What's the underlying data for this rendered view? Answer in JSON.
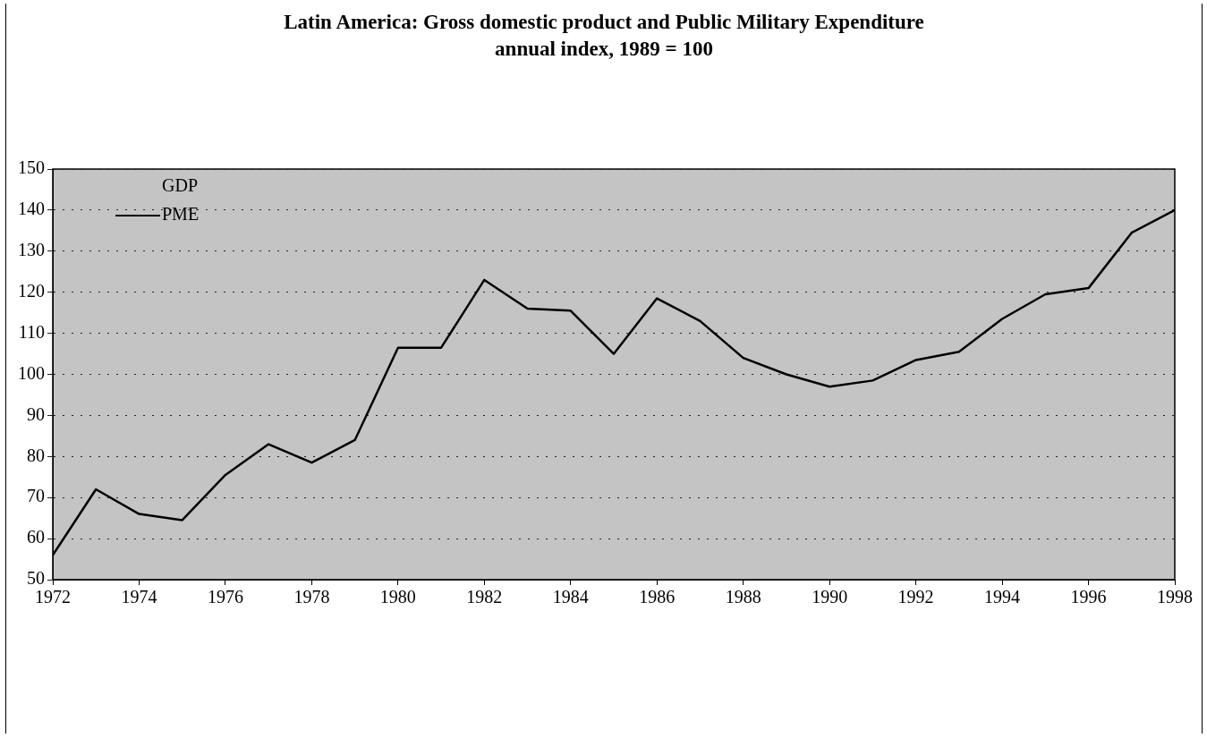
{
  "chart_data": {
    "type": "line",
    "title": "Latin America: Gross domestic product and Public Military Expenditure",
    "subtitle": "annual index, 1989 = 100",
    "x": [
      1972,
      1973,
      1974,
      1975,
      1976,
      1977,
      1978,
      1979,
      1980,
      1981,
      1982,
      1983,
      1984,
      1985,
      1986,
      1987,
      1988,
      1989,
      1990,
      1991,
      1992,
      1993,
      1994,
      1995,
      1996,
      1997,
      1998
    ],
    "series": [
      {
        "name": "PME",
        "color": "#000000",
        "values": [
          56,
          72,
          66,
          64.5,
          75.5,
          83,
          78.5,
          84,
          106.5,
          106.5,
          123,
          116,
          115.5,
          105,
          118.5,
          113,
          104,
          100,
          97,
          98.5,
          103.5,
          105.5,
          113.5,
          119.5,
          121,
          134.5,
          140
        ]
      }
    ],
    "annotations": [
      "GDP"
    ],
    "xlim": [
      1972,
      1998
    ],
    "xticks": [
      1972,
      1974,
      1976,
      1978,
      1980,
      1982,
      1984,
      1986,
      1988,
      1990,
      1992,
      1994,
      1996,
      1998
    ],
    "ylim": [
      50,
      150
    ],
    "yticks": [
      50,
      60,
      70,
      80,
      90,
      100,
      110,
      120,
      130,
      140,
      150
    ],
    "grid": "y",
    "legend": "top left",
    "marker": "none",
    "line_style": "solid"
  }
}
